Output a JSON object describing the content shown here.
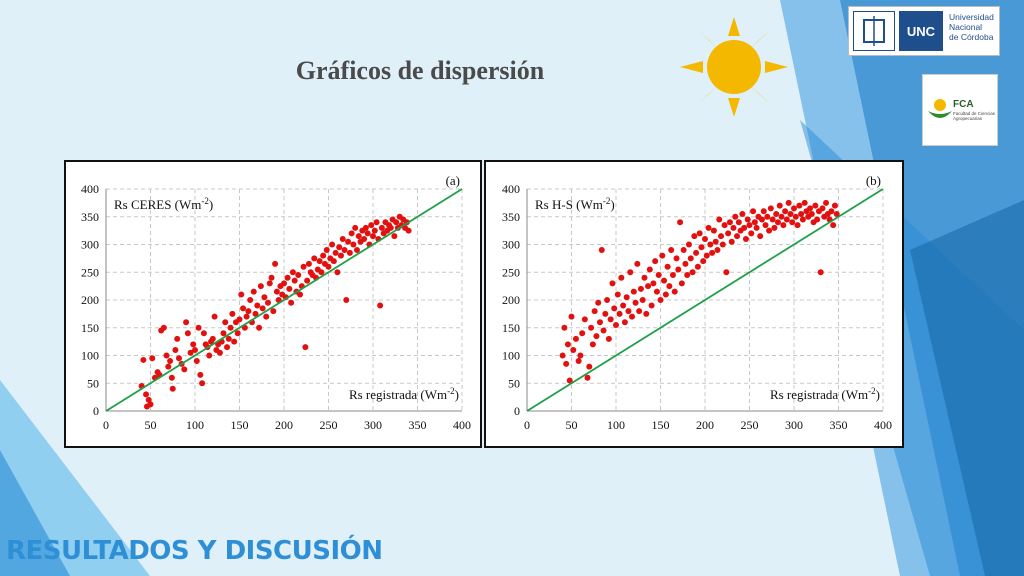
{
  "slide": {
    "title": "Gráficos de dispersión",
    "footer": "RESULTADOS Y DISCUSIÓN",
    "logo_unc": {
      "abbr": "UNC",
      "name_lines": [
        "Universidad",
        "Nacional",
        "de Córdoba"
      ]
    },
    "logo_fca": {
      "abbr": "FCA",
      "subtitle": "Facultad de Ciencias Agropecuarias"
    },
    "icons": [
      "sun-icon",
      "unc-seal-icon",
      "fca-leaf-icon"
    ],
    "colors": {
      "background": "#dff0f8",
      "accent": "#2e8fd6",
      "points": "#e31010",
      "line": "#1fa04a"
    }
  },
  "chart_data": [
    {
      "type": "scatter",
      "panel_label": "(a)",
      "ylabel_base": "Rs CERES (Wm",
      "ylabel_sup": "-2",
      "ylabel_end": ")",
      "xlabel_base": "Rs registrada (Wm",
      "xlabel_sup": "-2",
      "xlabel_end": ")",
      "xlim": [
        0,
        400
      ],
      "ylim": [
        0,
        400
      ],
      "xticks": [
        0,
        50,
        100,
        150,
        200,
        250,
        300,
        350,
        400
      ],
      "yticks": [
        0,
        50,
        100,
        150,
        200,
        250,
        300,
        350,
        400
      ],
      "grid": true,
      "reference_line": {
        "x": [
          0,
          400
        ],
        "y": [
          0,
          400
        ]
      },
      "points": [
        [
          40,
          45
        ],
        [
          42,
          92
        ],
        [
          45,
          30
        ],
        [
          48,
          20
        ],
        [
          50,
          12
        ],
        [
          46,
          8
        ],
        [
          52,
          95
        ],
        [
          55,
          60
        ],
        [
          58,
          70
        ],
        [
          60,
          65
        ],
        [
          62,
          145
        ],
        [
          65,
          150
        ],
        [
          68,
          100
        ],
        [
          70,
          80
        ],
        [
          72,
          90
        ],
        [
          74,
          60
        ],
        [
          75,
          40
        ],
        [
          78,
          110
        ],
        [
          80,
          130
        ],
        [
          82,
          95
        ],
        [
          85,
          85
        ],
        [
          88,
          75
        ],
        [
          90,
          160
        ],
        [
          92,
          140
        ],
        [
          95,
          105
        ],
        [
          98,
          120
        ],
        [
          100,
          110
        ],
        [
          102,
          90
        ],
        [
          104,
          150
        ],
        [
          106,
          65
        ],
        [
          108,
          50
        ],
        [
          110,
          140
        ],
        [
          112,
          120
        ],
        [
          114,
          115
        ],
        [
          116,
          100
        ],
        [
          118,
          125
        ],
        [
          120,
          130
        ],
        [
          122,
          170
        ],
        [
          124,
          110
        ],
        [
          126,
          120
        ],
        [
          128,
          105
        ],
        [
          130,
          125
        ],
        [
          132,
          140
        ],
        [
          134,
          160
        ],
        [
          136,
          115
        ],
        [
          138,
          130
        ],
        [
          140,
          150
        ],
        [
          142,
          175
        ],
        [
          144,
          125
        ],
        [
          146,
          160
        ],
        [
          148,
          140
        ],
        [
          150,
          165
        ],
        [
          152,
          210
        ],
        [
          154,
          185
        ],
        [
          156,
          150
        ],
        [
          158,
          170
        ],
        [
          160,
          180
        ],
        [
          162,
          200
        ],
        [
          164,
          160
        ],
        [
          166,
          215
        ],
        [
          168,
          175
        ],
        [
          170,
          190
        ],
        [
          172,
          150
        ],
        [
          174,
          225
        ],
        [
          176,
          185
        ],
        [
          178,
          205
        ],
        [
          180,
          170
        ],
        [
          182,
          195
        ],
        [
          184,
          230
        ],
        [
          186,
          240
        ],
        [
          188,
          180
        ],
        [
          190,
          265
        ],
        [
          192,
          215
        ],
        [
          194,
          200
        ],
        [
          196,
          225
        ],
        [
          198,
          210
        ],
        [
          200,
          230
        ],
        [
          202,
          205
        ],
        [
          204,
          240
        ],
        [
          206,
          220
        ],
        [
          208,
          195
        ],
        [
          210,
          250
        ],
        [
          212,
          235
        ],
        [
          214,
          215
        ],
        [
          216,
          245
        ],
        [
          218,
          210
        ],
        [
          220,
          225
        ],
        [
          222,
          260
        ],
        [
          224,
          115
        ],
        [
          226,
          235
        ],
        [
          228,
          265
        ],
        [
          230,
          250
        ],
        [
          232,
          245
        ],
        [
          234,
          275
        ],
        [
          236,
          240
        ],
        [
          238,
          255
        ],
        [
          240,
          270
        ],
        [
          242,
          250
        ],
        [
          244,
          280
        ],
        [
          246,
          265
        ],
        [
          248,
          290
        ],
        [
          250,
          260
        ],
        [
          252,
          275
        ],
        [
          254,
          300
        ],
        [
          256,
          270
        ],
        [
          258,
          285
        ],
        [
          260,
          250
        ],
        [
          262,
          295
        ],
        [
          264,
          280
        ],
        [
          266,
          310
        ],
        [
          268,
          290
        ],
        [
          270,
          200
        ],
        [
          272,
          305
        ],
        [
          274,
          285
        ],
        [
          276,
          320
        ],
        [
          278,
          300
        ],
        [
          280,
          330
        ],
        [
          282,
          290
        ],
        [
          284,
          315
        ],
        [
          286,
          305
        ],
        [
          288,
          325
        ],
        [
          290,
          310
        ],
        [
          292,
          330
        ],
        [
          294,
          320
        ],
        [
          296,
          300
        ],
        [
          298,
          335
        ],
        [
          300,
          315
        ],
        [
          302,
          325
        ],
        [
          304,
          340
        ],
        [
          306,
          310
        ],
        [
          308,
          190
        ],
        [
          310,
          330
        ],
        [
          312,
          320
        ],
        [
          314,
          340
        ],
        [
          316,
          325
        ],
        [
          318,
          335
        ],
        [
          320,
          330
        ],
        [
          322,
          345
        ],
        [
          324,
          315
        ],
        [
          326,
          340
        ],
        [
          328,
          330
        ],
        [
          330,
          350
        ],
        [
          332,
          335
        ],
        [
          334,
          345
        ],
        [
          336,
          330
        ],
        [
          338,
          340
        ],
        [
          340,
          325
        ]
      ]
    },
    {
      "type": "scatter",
      "panel_label": "(b)",
      "ylabel_base": "Rs H-S (Wm",
      "ylabel_sup": "-2",
      "ylabel_end": ")",
      "xlabel_base": "Rs registrada (Wm",
      "xlabel_sup": "-2",
      "xlabel_end": ")",
      "xlim": [
        0,
        400
      ],
      "ylim": [
        0,
        400
      ],
      "xticks": [
        0,
        50,
        100,
        150,
        200,
        250,
        300,
        350,
        400
      ],
      "yticks": [
        0,
        50,
        100,
        150,
        200,
        250,
        300,
        350,
        400
      ],
      "grid": true,
      "reference_line": {
        "x": [
          0,
          400
        ],
        "y": [
          0,
          400
        ]
      },
      "points": [
        [
          40,
          100
        ],
        [
          42,
          150
        ],
        [
          44,
          85
        ],
        [
          46,
          120
        ],
        [
          48,
          55
        ],
        [
          50,
          170
        ],
        [
          52,
          110
        ],
        [
          55,
          130
        ],
        [
          58,
          90
        ],
        [
          60,
          100
        ],
        [
          62,
          140
        ],
        [
          65,
          165
        ],
        [
          68,
          60
        ],
        [
          70,
          80
        ],
        [
          72,
          150
        ],
        [
          74,
          120
        ],
        [
          76,
          180
        ],
        [
          78,
          135
        ],
        [
          80,
          195
        ],
        [
          82,
          160
        ],
        [
          84,
          290
        ],
        [
          86,
          145
        ],
        [
          88,
          175
        ],
        [
          90,
          200
        ],
        [
          92,
          130
        ],
        [
          94,
          165
        ],
        [
          96,
          230
        ],
        [
          98,
          185
        ],
        [
          100,
          155
        ],
        [
          102,
          210
        ],
        [
          104,
          175
        ],
        [
          106,
          240
        ],
        [
          108,
          190
        ],
        [
          110,
          160
        ],
        [
          112,
          205
        ],
        [
          114,
          180
        ],
        [
          116,
          250
        ],
        [
          118,
          170
        ],
        [
          120,
          215
        ],
        [
          122,
          195
        ],
        [
          124,
          265
        ],
        [
          126,
          180
        ],
        [
          128,
          220
        ],
        [
          130,
          200
        ],
        [
          132,
          240
        ],
        [
          134,
          175
        ],
        [
          136,
          225
        ],
        [
          138,
          255
        ],
        [
          140,
          190
        ],
        [
          142,
          230
        ],
        [
          144,
          270
        ],
        [
          146,
          215
        ],
        [
          148,
          245
        ],
        [
          150,
          200
        ],
        [
          152,
          280
        ],
        [
          154,
          235
        ],
        [
          156,
          210
        ],
        [
          158,
          260
        ],
        [
          160,
          225
        ],
        [
          162,
          290
        ],
        [
          164,
          245
        ],
        [
          166,
          215
        ],
        [
          168,
          275
        ],
        [
          170,
          255
        ],
        [
          172,
          340
        ],
        [
          174,
          230
        ],
        [
          176,
          290
        ],
        [
          178,
          265
        ],
        [
          180,
          245
        ],
        [
          182,
          300
        ],
        [
          184,
          275
        ],
        [
          186,
          250
        ],
        [
          188,
          315
        ],
        [
          190,
          285
        ],
        [
          192,
          260
        ],
        [
          194,
          320
        ],
        [
          196,
          295
        ],
        [
          198,
          270
        ],
        [
          200,
          310
        ],
        [
          202,
          280
        ],
        [
          204,
          330
        ],
        [
          206,
          300
        ],
        [
          208,
          285
        ],
        [
          210,
          325
        ],
        [
          212,
          305
        ],
        [
          214,
          290
        ],
        [
          216,
          345
        ],
        [
          218,
          315
        ],
        [
          220,
          300
        ],
        [
          222,
          335
        ],
        [
          224,
          250
        ],
        [
          226,
          320
        ],
        [
          228,
          340
        ],
        [
          230,
          305
        ],
        [
          232,
          330
        ],
        [
          234,
          350
        ],
        [
          236,
          315
        ],
        [
          238,
          340
        ],
        [
          240,
          325
        ],
        [
          242,
          355
        ],
        [
          244,
          330
        ],
        [
          246,
          310
        ],
        [
          248,
          345
        ],
        [
          250,
          335
        ],
        [
          252,
          320
        ],
        [
          254,
          360
        ],
        [
          256,
          340
        ],
        [
          258,
          330
        ],
        [
          260,
          350
        ],
        [
          262,
          315
        ],
        [
          264,
          345
        ],
        [
          266,
          360
        ],
        [
          268,
          335
        ],
        [
          270,
          350
        ],
        [
          272,
          325
        ],
        [
          274,
          365
        ],
        [
          276,
          345
        ],
        [
          278,
          330
        ],
        [
          280,
          355
        ],
        [
          282,
          340
        ],
        [
          284,
          370
        ],
        [
          286,
          350
        ],
        [
          288,
          335
        ],
        [
          290,
          360
        ],
        [
          292,
          345
        ],
        [
          294,
          375
        ],
        [
          296,
          355
        ],
        [
          298,
          340
        ],
        [
          300,
          365
        ],
        [
          302,
          350
        ],
        [
          304,
          335
        ],
        [
          306,
          370
        ],
        [
          308,
          355
        ],
        [
          310,
          345
        ],
        [
          312,
          375
        ],
        [
          314,
          360
        ],
        [
          316,
          350
        ],
        [
          318,
          365
        ],
        [
          320,
          355
        ],
        [
          322,
          340
        ],
        [
          324,
          370
        ],
        [
          326,
          345
        ],
        [
          328,
          360
        ],
        [
          330,
          250
        ],
        [
          332,
          365
        ],
        [
          334,
          350
        ],
        [
          336,
          375
        ],
        [
          338,
          355
        ],
        [
          340,
          345
        ],
        [
          342,
          360
        ],
        [
          344,
          335
        ],
        [
          346,
          370
        ],
        [
          348,
          355
        ]
      ]
    }
  ]
}
